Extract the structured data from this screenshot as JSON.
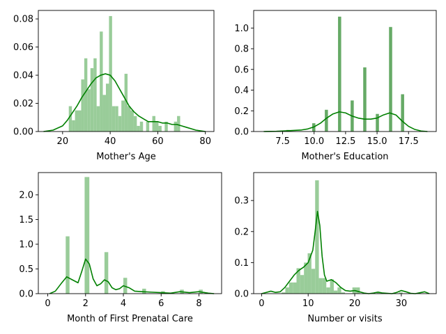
{
  "figure": {
    "background": "#ffffff"
  },
  "chart_data": [
    {
      "type": "histogram",
      "xlabel": "Mother's Age",
      "ylabel": "",
      "xlim": [
        9.8,
        83.6
      ],
      "ylim": [
        0,
        0.086
      ],
      "xticks": [
        20,
        40,
        60,
        80
      ],
      "yticks": [
        0.0,
        0.02,
        0.04,
        0.06,
        0.08
      ],
      "ytick_labels": [
        "0.00",
        "0.02",
        "0.04",
        "0.06",
        "0.08"
      ],
      "bar_color": "#99cc99",
      "kde_color": "#008000",
      "bins": [
        {
          "x0": 22.6,
          "x1": 23.9,
          "y": 0.018
        },
        {
          "x0": 23.9,
          "x1": 25.2,
          "y": 0.008
        },
        {
          "x0": 25.2,
          "x1": 26.5,
          "y": 0.015
        },
        {
          "x0": 26.5,
          "x1": 27.8,
          "y": 0.015
        },
        {
          "x0": 27.8,
          "x1": 29.1,
          "y": 0.037
        },
        {
          "x0": 29.1,
          "x1": 30.4,
          "y": 0.052
        },
        {
          "x0": 30.4,
          "x1": 31.7,
          "y": 0.03
        },
        {
          "x0": 31.7,
          "x1": 33.0,
          "y": 0.045
        },
        {
          "x0": 33.0,
          "x1": 34.3,
          "y": 0.052
        },
        {
          "x0": 34.3,
          "x1": 35.6,
          "y": 0.018
        },
        {
          "x0": 35.6,
          "x1": 36.9,
          "y": 0.071
        },
        {
          "x0": 36.9,
          "x1": 38.2,
          "y": 0.026
        },
        {
          "x0": 38.2,
          "x1": 39.5,
          "y": 0.034
        },
        {
          "x0": 39.5,
          "x1": 40.8,
          "y": 0.082
        },
        {
          "x0": 40.8,
          "x1": 42.1,
          "y": 0.018
        },
        {
          "x0": 42.1,
          "x1": 43.4,
          "y": 0.018
        },
        {
          "x0": 43.4,
          "x1": 44.7,
          "y": 0.011
        },
        {
          "x0": 44.7,
          "x1": 46.0,
          "y": 0.022
        },
        {
          "x0": 46.0,
          "x1": 47.3,
          "y": 0.041
        },
        {
          "x0": 47.3,
          "x1": 48.6,
          "y": 0.018
        },
        {
          "x0": 48.6,
          "x1": 49.9,
          "y": 0.015
        },
        {
          "x0": 49.9,
          "x1": 51.2,
          "y": 0.011
        },
        {
          "x0": 51.2,
          "x1": 52.5,
          "y": 0.004
        },
        {
          "x0": 52.5,
          "x1": 53.8,
          "y": 0.007
        },
        {
          "x0": 55.1,
          "x1": 56.4,
          "y": 0.007
        },
        {
          "x0": 57.7,
          "x1": 59.0,
          "y": 0.011
        },
        {
          "x0": 59.0,
          "x1": 60.3,
          "y": 0.007
        },
        {
          "x0": 60.3,
          "x1": 61.6,
          "y": 0.004
        },
        {
          "x0": 62.9,
          "x1": 64.2,
          "y": 0.007
        },
        {
          "x0": 66.8,
          "x1": 68.1,
          "y": 0.007
        },
        {
          "x0": 68.1,
          "x1": 69.4,
          "y": 0.011
        }
      ],
      "kde": {
        "x": [
          12,
          16,
          20,
          22,
          24,
          26,
          28,
          30,
          32,
          34,
          36,
          38,
          40,
          42,
          44,
          46,
          48,
          50,
          52,
          54,
          56,
          58,
          60,
          62,
          64,
          66,
          68,
          70,
          72,
          76,
          80
        ],
        "y": [
          0.0,
          0.001,
          0.004,
          0.008,
          0.013,
          0.018,
          0.024,
          0.029,
          0.034,
          0.038,
          0.04,
          0.041,
          0.04,
          0.036,
          0.03,
          0.024,
          0.018,
          0.014,
          0.011,
          0.009,
          0.007,
          0.007,
          0.007,
          0.006,
          0.006,
          0.005,
          0.005,
          0.004,
          0.003,
          0.001,
          0.0
        ]
      }
    },
    {
      "type": "histogram",
      "xlabel": "Mother's Education",
      "ylabel": "",
      "xlim": [
        5.2,
        19.7
      ],
      "ylim": [
        0,
        1.17
      ],
      "xticks": [
        7.5,
        10.0,
        12.5,
        15.0,
        17.5
      ],
      "xtick_labels": [
        "7.5",
        "10.0",
        "12.5",
        "15.0",
        "17.5"
      ],
      "yticks": [
        0.0,
        0.2,
        0.4,
        0.6,
        0.8,
        1.0
      ],
      "ytick_labels": [
        "0.0",
        "0.2",
        "0.4",
        "0.6",
        "0.8",
        "1.0"
      ],
      "bar_color": "#66aa66",
      "kde_color": "#008000",
      "bins": [
        {
          "x0": 7.8,
          "x1": 8.05,
          "y": 0.015
        },
        {
          "x0": 9.85,
          "x1": 10.1,
          "y": 0.08
        },
        {
          "x0": 10.85,
          "x1": 11.1,
          "y": 0.21
        },
        {
          "x0": 11.9,
          "x1": 12.15,
          "y": 1.11
        },
        {
          "x0": 12.9,
          "x1": 13.15,
          "y": 0.3
        },
        {
          "x0": 13.9,
          "x1": 14.15,
          "y": 0.62
        },
        {
          "x0": 14.9,
          "x1": 15.15,
          "y": 0.17
        },
        {
          "x0": 15.95,
          "x1": 16.2,
          "y": 1.01
        },
        {
          "x0": 16.9,
          "x1": 17.15,
          "y": 0.36
        }
      ],
      "kde": {
        "x": [
          6,
          7,
          8,
          9,
          9.5,
          10,
          10.5,
          11,
          11.5,
          12,
          12.5,
          13,
          13.5,
          14,
          14.5,
          15,
          15.5,
          16,
          16.5,
          17,
          17.5,
          18,
          18.5,
          19
        ],
        "y": [
          0.0,
          0.002,
          0.008,
          0.015,
          0.025,
          0.045,
          0.08,
          0.13,
          0.17,
          0.19,
          0.18,
          0.15,
          0.13,
          0.12,
          0.12,
          0.13,
          0.16,
          0.18,
          0.16,
          0.1,
          0.05,
          0.02,
          0.005,
          0.0
        ]
      }
    },
    {
      "type": "histogram",
      "xlabel": "Month of First Prenatal Care",
      "ylabel": "",
      "xlim": [
        -0.5,
        9.2
      ],
      "ylim": [
        0,
        2.45
      ],
      "xticks": [
        0,
        2,
        4,
        6,
        8
      ],
      "yticks": [
        0.0,
        0.5,
        1.0,
        1.5,
        2.0
      ],
      "ytick_labels": [
        "0.0",
        "0.5",
        "1.0",
        "1.5",
        "2.0"
      ],
      "bar_color": "#99cc99",
      "kde_color": "#008000",
      "bins": [
        {
          "x0": 0.95,
          "x1": 1.15,
          "y": 1.16
        },
        {
          "x0": 1.95,
          "x1": 2.2,
          "y": 2.36
        },
        {
          "x0": 3.0,
          "x1": 3.2,
          "y": 0.84
        },
        {
          "x0": 4.0,
          "x1": 4.2,
          "y": 0.32
        },
        {
          "x0": 5.0,
          "x1": 5.2,
          "y": 0.1
        },
        {
          "x0": 6.0,
          "x1": 6.2,
          "y": 0.05
        },
        {
          "x0": 7.0,
          "x1": 7.2,
          "y": 0.08
        },
        {
          "x0": 8.0,
          "x1": 8.2,
          "y": 0.08
        }
      ],
      "kde": {
        "x": [
          0.1,
          0.4,
          0.7,
          1.0,
          1.3,
          1.6,
          1.8,
          2.0,
          2.2,
          2.4,
          2.6,
          2.8,
          3.0,
          3.2,
          3.4,
          3.6,
          3.8,
          4.0,
          4.3,
          4.6,
          5.0,
          5.5,
          6.0,
          6.5,
          7.0,
          7.5,
          8.0,
          8.5,
          8.8
        ],
        "y": [
          0.0,
          0.05,
          0.2,
          0.34,
          0.28,
          0.22,
          0.45,
          0.7,
          0.6,
          0.3,
          0.16,
          0.2,
          0.28,
          0.24,
          0.12,
          0.08,
          0.1,
          0.16,
          0.12,
          0.05,
          0.04,
          0.03,
          0.02,
          0.01,
          0.04,
          0.02,
          0.04,
          0.01,
          0.0
        ]
      }
    },
    {
      "type": "histogram",
      "xlabel": "Number or visits",
      "ylabel": "",
      "xlim": [
        -1.7,
        37.5
      ],
      "ylim": [
        0,
        0.39
      ],
      "xticks": [
        0,
        10,
        20,
        30
      ],
      "yticks": [
        0.0,
        0.1,
        0.2,
        0.3
      ],
      "ytick_labels": [
        "0.0",
        "0.1",
        "0.2",
        "0.3"
      ],
      "bar_color": "#99cc99",
      "kde_color": "#008000",
      "bins": [
        {
          "x0": 4.3,
          "x1": 5.1,
          "y": 0.004
        },
        {
          "x0": 5.1,
          "x1": 5.9,
          "y": 0.02
        },
        {
          "x0": 5.9,
          "x1": 6.7,
          "y": 0.036
        },
        {
          "x0": 6.7,
          "x1": 7.5,
          "y": 0.036
        },
        {
          "x0": 7.5,
          "x1": 8.3,
          "y": 0.082
        },
        {
          "x0": 8.3,
          "x1": 9.1,
          "y": 0.06
        },
        {
          "x0": 9.1,
          "x1": 9.9,
          "y": 0.1
        },
        {
          "x0": 9.9,
          "x1": 10.7,
          "y": 0.13
        },
        {
          "x0": 10.7,
          "x1": 11.5,
          "y": 0.08
        },
        {
          "x0": 11.5,
          "x1": 12.3,
          "y": 0.365
        },
        {
          "x0": 12.3,
          "x1": 13.1,
          "y": 0.05
        },
        {
          "x0": 13.1,
          "x1": 13.9,
          "y": 0.05
        },
        {
          "x0": 13.9,
          "x1": 14.7,
          "y": 0.02
        },
        {
          "x0": 14.7,
          "x1": 15.5,
          "y": 0.046
        },
        {
          "x0": 15.5,
          "x1": 16.3,
          "y": 0.01
        },
        {
          "x0": 16.3,
          "x1": 17.1,
          "y": 0.02
        },
        {
          "x0": 17.1,
          "x1": 17.9,
          "y": 0.004
        },
        {
          "x0": 19.5,
          "x1": 20.3,
          "y": 0.02
        },
        {
          "x0": 20.3,
          "x1": 21.1,
          "y": 0.02
        },
        {
          "x0": 24.7,
          "x1": 25.5,
          "y": 0.004
        },
        {
          "x0": 29.5,
          "x1": 30.3,
          "y": 0.004
        }
      ],
      "kde": {
        "x": [
          0,
          1,
          2,
          3,
          4,
          5,
          6,
          7,
          8,
          9,
          10,
          10.5,
          11,
          11.5,
          12,
          12.5,
          13,
          13.5,
          14,
          15,
          16,
          17,
          18,
          19,
          20,
          21,
          22,
          23,
          24,
          25,
          26,
          28,
          29,
          30,
          31,
          32,
          33,
          34,
          35,
          36
        ],
        "y": [
          0.0,
          0.004,
          0.008,
          0.004,
          0.006,
          0.02,
          0.04,
          0.06,
          0.075,
          0.085,
          0.1,
          0.12,
          0.14,
          0.2,
          0.265,
          0.22,
          0.12,
          0.06,
          0.04,
          0.045,
          0.035,
          0.02,
          0.01,
          0.008,
          0.01,
          0.006,
          0.002,
          0.0,
          0.002,
          0.005,
          0.002,
          0.0,
          0.004,
          0.01,
          0.006,
          0.001,
          0.0,
          0.003,
          0.006,
          0.0
        ]
      }
    }
  ]
}
